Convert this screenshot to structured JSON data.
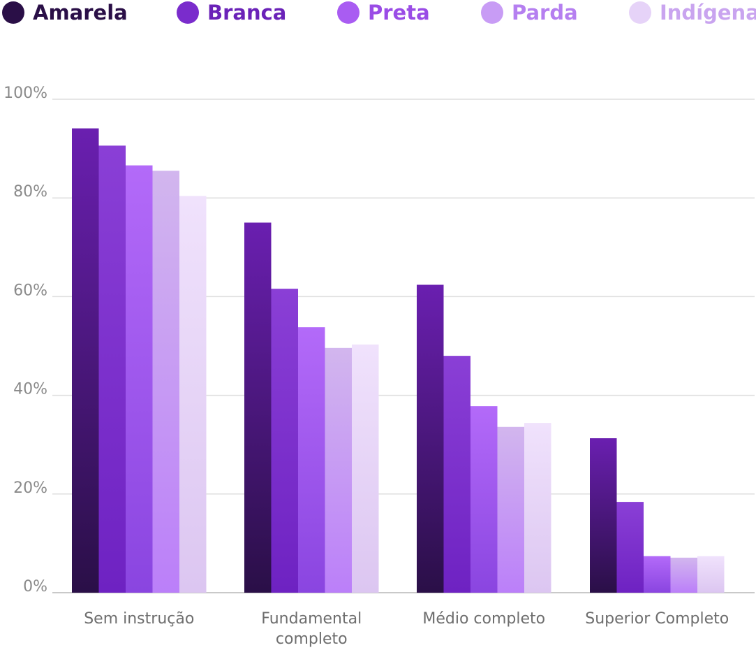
{
  "chart_data": {
    "type": "bar",
    "title": "",
    "xlabel": "",
    "ylabel": "",
    "ylim": [
      0,
      100
    ],
    "y_ticks": [
      "0%",
      "20%",
      "40%",
      "60%",
      "80%",
      "100%"
    ],
    "y_tick_values": [
      0,
      20,
      40,
      60,
      80,
      100
    ],
    "grid": true,
    "legend_position": "top",
    "categories": [
      [
        "Sem instrução"
      ],
      [
        "Fundamental",
        "completo"
      ],
      [
        "Médio completo"
      ],
      [
        "Superior Completo"
      ]
    ],
    "series": [
      {
        "name": "Amarela",
        "values": [
          94.1,
          75.0,
          62.4,
          31.3
        ],
        "color_top": "#6a1fb0",
        "color_bottom": "#2a0f47",
        "legend_color": "#2a0f47",
        "label_color": "#2a0f47"
      },
      {
        "name": "Branca",
        "values": [
          90.6,
          61.6,
          48.0,
          18.4
        ],
        "color_top": "#8a3fd6",
        "color_bottom": "#6e22c2",
        "legend_color": "#7a2ccc",
        "label_color": "#6a22b8"
      },
      {
        "name": "Preta",
        "values": [
          86.6,
          53.8,
          37.8,
          7.4
        ],
        "color_top": "#b36af9",
        "color_bottom": "#8a45e0",
        "legend_color": "#a95cf2",
        "label_color": "#9a4ce6"
      },
      {
        "name": "Parda",
        "values": [
          85.5,
          49.6,
          33.6,
          7.1
        ],
        "color_top": "#d2b6ee",
        "color_bottom": "#bb7ff9",
        "legend_color": "#c89cf5",
        "label_color": "#b57ff0"
      },
      {
        "name": "Indígena",
        "values": [
          80.4,
          50.3,
          34.4,
          7.4
        ],
        "color_top": "#f0e2fc",
        "color_bottom": "#dcc6f1",
        "legend_color": "#e6d3f8",
        "label_color": "#c9a4ef"
      }
    ]
  }
}
